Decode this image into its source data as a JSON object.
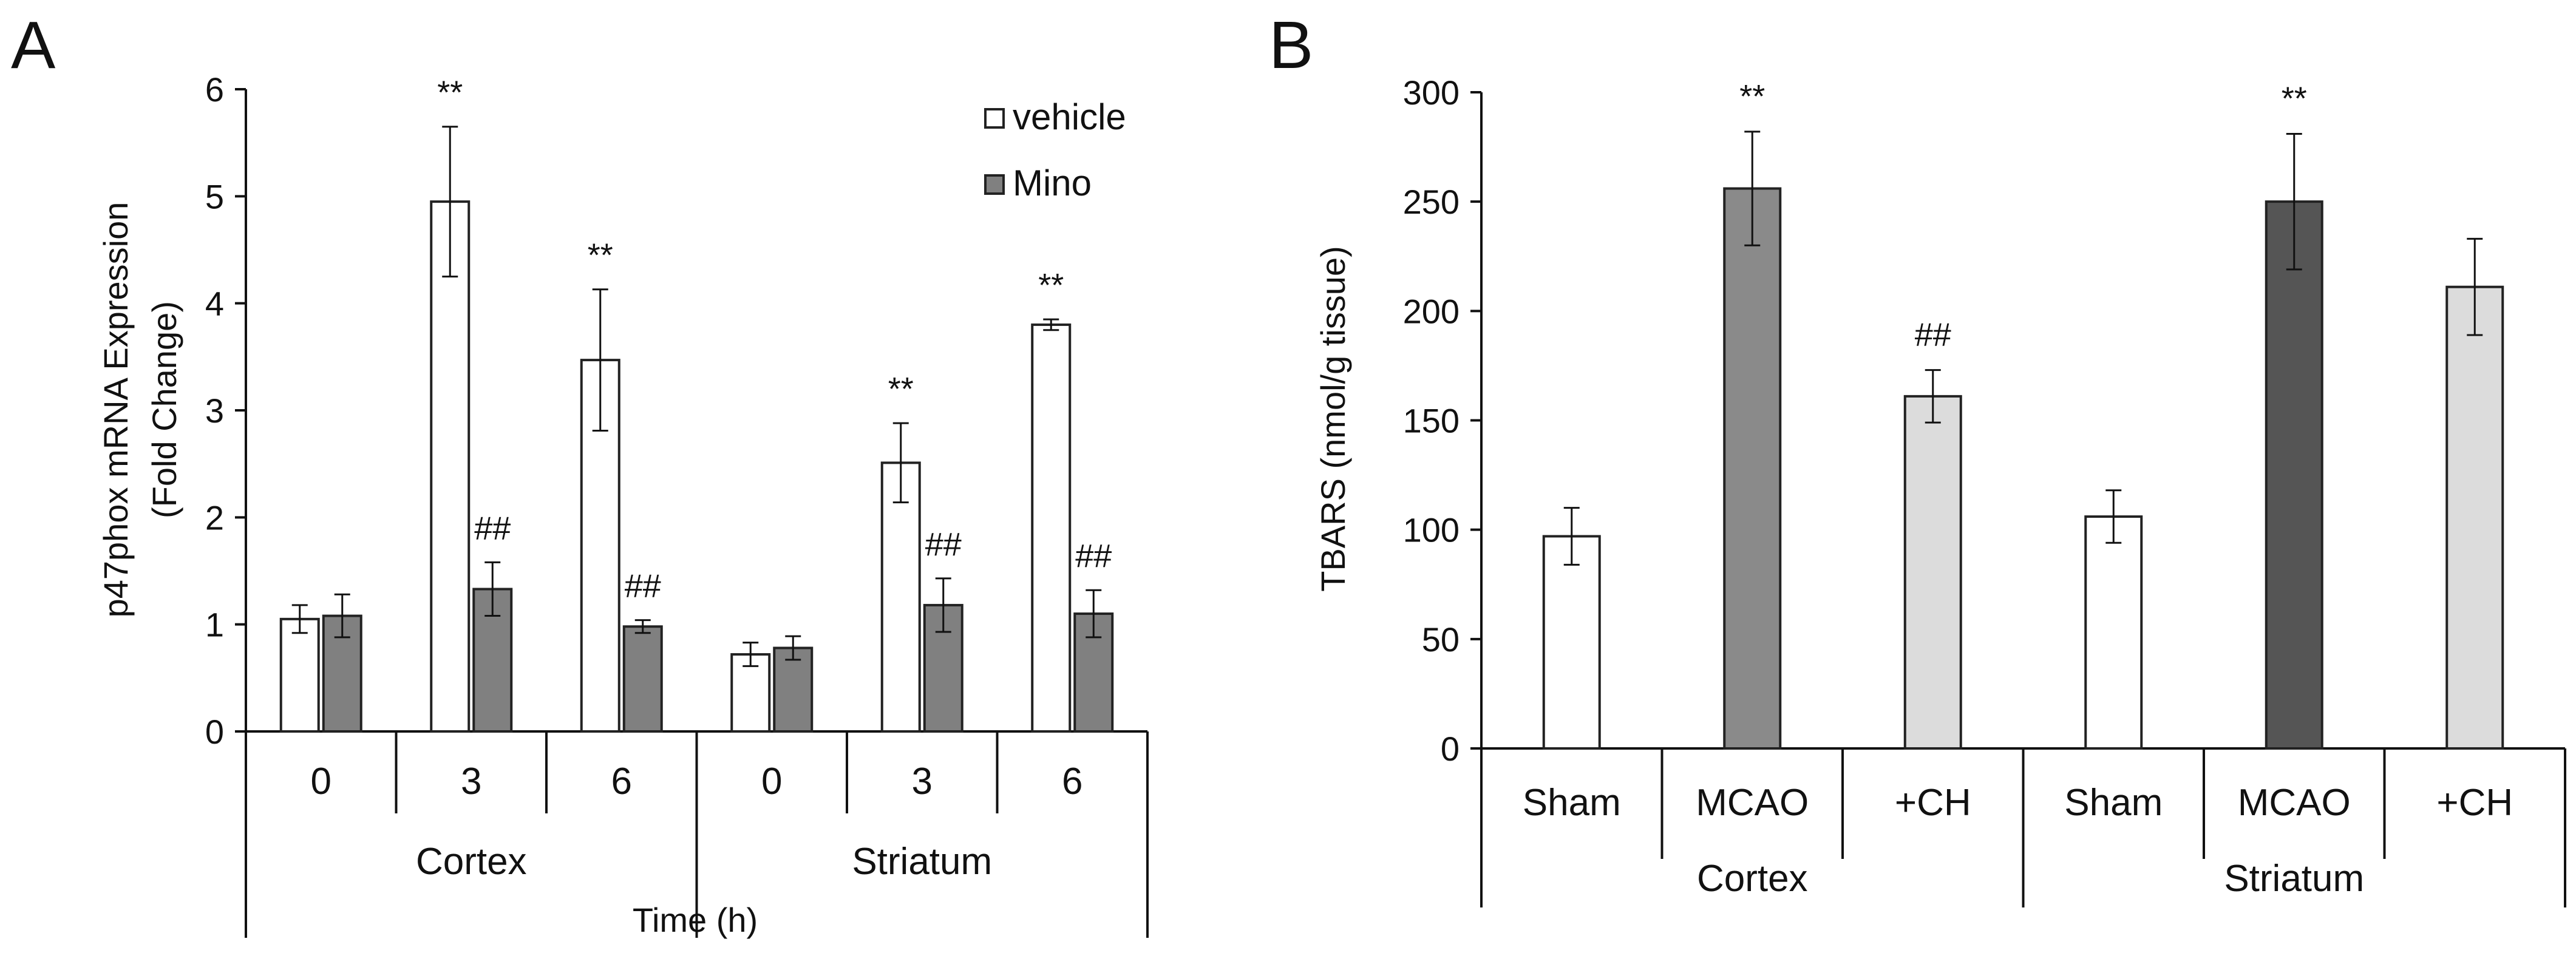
{
  "figure": {
    "panels": [
      "A",
      "B"
    ]
  },
  "colors": {
    "axis": "#111111",
    "vehicle": "#ffffff",
    "mino": "#808080",
    "sham": "#ffffff",
    "mcao_cortex": "#8a8a8a",
    "mcao_striatum": "#555555",
    "ch": "#dcdcdc",
    "bar_stroke": "#222222"
  },
  "chart_data": [
    {
      "panel": "A",
      "type": "bar",
      "title": "",
      "ylabel_line1": "p47phox mRNA Expression",
      "ylabel_line2": "(Fold Change)",
      "xlabel": "Time  (h)",
      "ylim": [
        0,
        6
      ],
      "yticks": [
        "0",
        "1",
        "2",
        "3",
        "4",
        "5",
        "6"
      ],
      "categories": [
        "0",
        "3",
        "6",
        "0",
        "3",
        "6"
      ],
      "groups": [
        {
          "label": "Cortex",
          "span": [
            0,
            2
          ]
        },
        {
          "label": "Striatum",
          "span": [
            3,
            5
          ]
        }
      ],
      "legend": {
        "placement": "top-right",
        "entries": [
          "vehicle",
          "Mino"
        ]
      },
      "series": [
        {
          "name": "vehicle",
          "values": [
            1.05,
            4.95,
            3.47,
            0.72,
            2.51,
            3.8
          ],
          "errors": [
            0.13,
            0.7,
            0.66,
            0.11,
            0.37,
            0.05
          ],
          "annotations": [
            "",
            "**",
            "**",
            "",
            "**",
            "**"
          ]
        },
        {
          "name": "Mino",
          "values": [
            1.08,
            1.33,
            0.98,
            0.78,
            1.18,
            1.1
          ],
          "errors": [
            0.2,
            0.25,
            0.06,
            0.11,
            0.25,
            0.22
          ],
          "annotations": [
            "",
            "##",
            "##",
            "",
            "##",
            "##"
          ]
        }
      ]
    },
    {
      "panel": "B",
      "type": "bar",
      "title": "",
      "ylabel": "TBARS  (nmol/g tissue)",
      "xlabel": "",
      "ylim": [
        0,
        300
      ],
      "yticks": [
        "0",
        "50",
        "100",
        "150",
        "200",
        "250",
        "300"
      ],
      "categories": [
        "Sham",
        "MCAO",
        "+CH",
        "Sham",
        "MCAO",
        "+CH"
      ],
      "groups": [
        {
          "label": "Cortex",
          "span": [
            0,
            2
          ]
        },
        {
          "label": "Striatum",
          "span": [
            3,
            5
          ]
        }
      ],
      "series": [
        {
          "name": "TBARS",
          "values": [
            97,
            256,
            161,
            106,
            250,
            211
          ],
          "errors": [
            13,
            26,
            12,
            12,
            31,
            22
          ],
          "annotations": [
            "",
            "**",
            "##",
            "",
            "**",
            ""
          ],
          "fills": [
            "sham",
            "mcao_cortex",
            "ch",
            "sham",
            "mcao_striatum",
            "ch"
          ]
        }
      ]
    }
  ]
}
